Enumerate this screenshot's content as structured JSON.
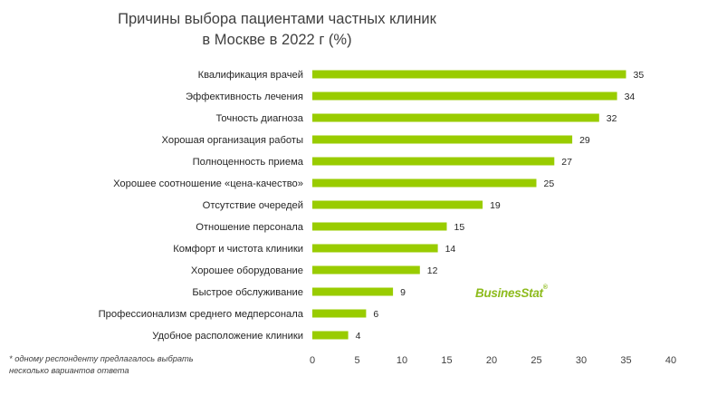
{
  "title_lines": [
    "Причины выбора пациентами частных клиник",
    "в Москве в 2022 г (%)"
  ],
  "footnote_lines": [
    "* одному респонденту предлагалось выбрать",
    "несколько вариантов ответа"
  ],
  "logo": {
    "main": "BusinesStat",
    "mark": "®"
  },
  "colors": {
    "bar": "#99cc00",
    "text": "#262626"
  },
  "chart_data": {
    "type": "bar",
    "orientation": "horizontal",
    "title": "Причины выбора пациентами частных клиник в Москве в 2022 г (%)",
    "xlabel": "",
    "ylabel": "",
    "xlim": [
      0,
      40
    ],
    "xticks": [
      "0",
      "5",
      "10",
      "15",
      "20",
      "25",
      "30",
      "35",
      "40"
    ],
    "grid": false,
    "categories": [
      "Квалификация врачей",
      "Эффективность  лечения",
      "Точность диагноза",
      "Хорошая организация работы",
      "Полноценность приема",
      "Хорошее соотношение «цена-качество»",
      "Отсутствие очередей",
      "Отношение  персонала",
      "Комфорт и чистота клиники",
      "Хорошее оборудование",
      "Быстрое обслуживание",
      "Профессионализм среднего медперсонала",
      "Удобное расположение клиники"
    ],
    "values": [
      35,
      34,
      32,
      29,
      27,
      25,
      19,
      15,
      14,
      12,
      9,
      6,
      4
    ]
  }
}
